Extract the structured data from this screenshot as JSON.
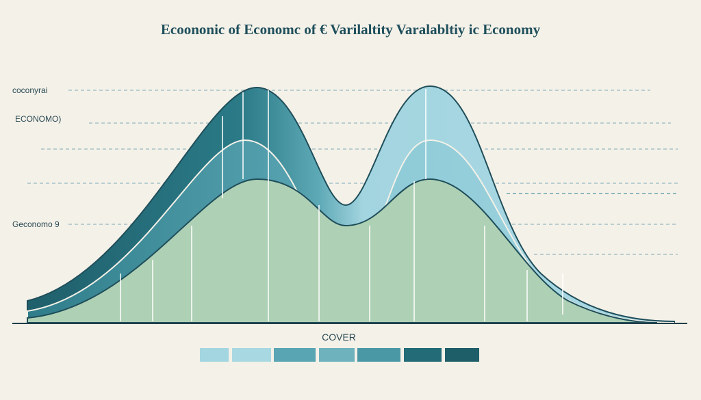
{
  "title": "Ecoononic of Economc of € Varilaltity Varalabltiy ic Economy",
  "side_labels": [
    "coconyrai",
    "ECONOMO)",
    "Geconomo 9"
  ],
  "legend": {
    "label": "COVER",
    "colors": [
      "#a4d6e1",
      "#a8d8e2",
      "#5aa5b3",
      "#6eb2bd",
      "#4a98a6",
      "#236b77",
      "#1e5e68"
    ]
  }
}
